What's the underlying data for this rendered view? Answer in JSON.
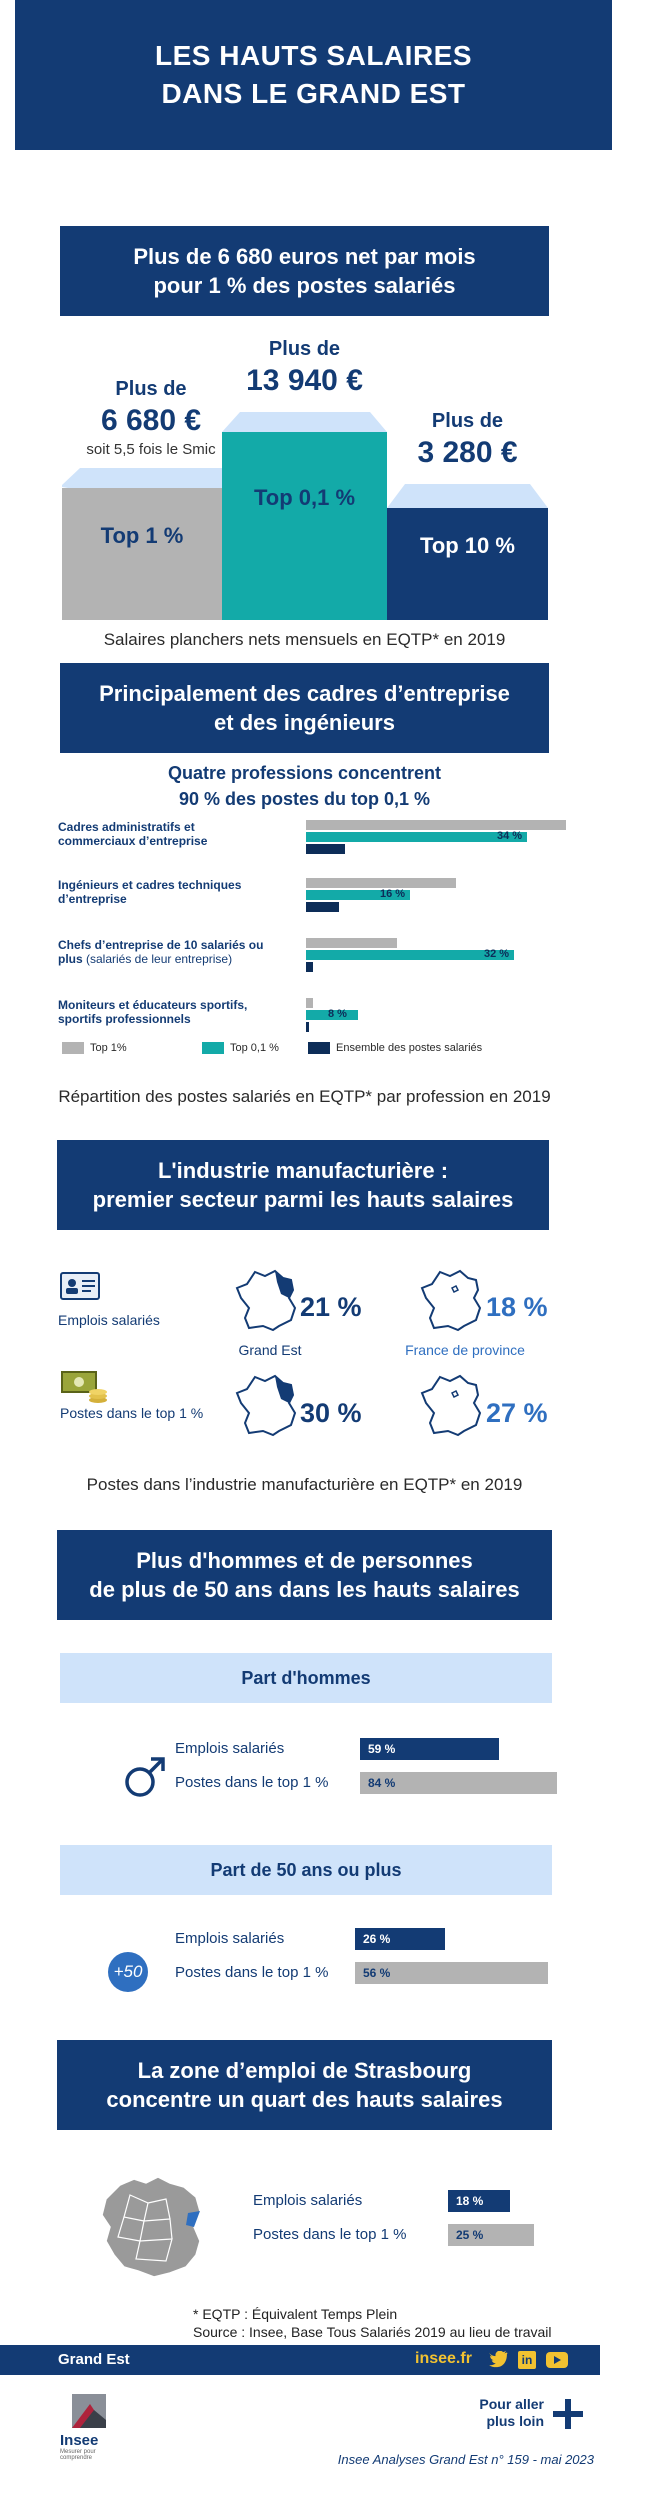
{
  "header": {
    "title_line1": "LES HAUTS SALAIRES",
    "title_line2": "DANS LE GRAND EST"
  },
  "section1": {
    "title_line1": "Plus de 6 680 euros net par mois",
    "title_line2": "pour 1 % des postes salariés",
    "columns": [
      {
        "prefix": "Plus de",
        "amount": "6 680 €",
        "note": "soit 5,5 fois le Smic",
        "label": "Top 1 %",
        "color": "#b3b3b3"
      },
      {
        "prefix": "Plus de",
        "amount": "13 940 €",
        "note": "",
        "label": "Top 0,1 %",
        "color": "#13aaa8"
      },
      {
        "prefix": "Plus de",
        "amount": "3 280 €",
        "note": "",
        "label": "Top 10 %",
        "color": "#133b74"
      }
    ],
    "caption": "Salaires planchers nets mensuels en EQTP* en 2019"
  },
  "section2": {
    "title_line1": "Principalement des cadres d’entreprise",
    "title_line2": "et des ingénieurs",
    "subtitle_line1": "Quatre professions concentrent",
    "subtitle_line2": "90 % des postes du top 0,1 %",
    "caption": "Répartition des postes salariés en EQTP* par profession en 2019"
  },
  "chart_data": {
    "type": "bar",
    "categories": [
      "Cadres administratifs et commerciaux d’entreprise",
      "Ingénieurs et cadres techniques d’entreprise",
      "Chefs d’entreprise de 10 salariés ou plus (salariés de leur entreprise)",
      "Moniteurs et éducateurs sportifs, sportifs professionnels"
    ],
    "category_lines": [
      {
        "line1": "Cadres administratifs et",
        "line2": "commerciaux d’entreprise",
        "note": ""
      },
      {
        "line1": "Ingénieurs et cadres techniques",
        "line2": "d’entreprise",
        "note": ""
      },
      {
        "line1": "Chefs d’entreprise de 10 salariés ou",
        "line2": "plus",
        "note": " (salariés de leur entreprise)"
      },
      {
        "line1": "Moniteurs et éducateurs sportifs,",
        "line2": "sportifs professionnels",
        "note": ""
      }
    ],
    "series": [
      {
        "name": "Top 1%",
        "color": "#b3b3b3",
        "values": [
          40,
          23,
          14,
          1
        ]
      },
      {
        "name": "Top 0,1 %",
        "color": "#13aaa8",
        "values": [
          34,
          16,
          32,
          8
        ],
        "labels": [
          "34 %",
          "16 %",
          "32 %",
          "8 %"
        ]
      },
      {
        "name": "Ensemble des postes salariés",
        "color": "#0d2d58",
        "values": [
          6,
          5,
          1,
          0.5
        ]
      }
    ],
    "xlim": [
      0,
      45
    ],
    "legend": "bottom"
  },
  "section3": {
    "title_line1": "L'industrie manufacturière :",
    "title_line2": "premier secteur parmi les hauts salaires",
    "row1_label": "Emplois salariés",
    "row2_label": "Postes dans le top 1 %",
    "grand_est_label": "Grand Est",
    "province_label": "France de province",
    "values": {
      "emplois_grand_est": "21 %",
      "emplois_province": "18 %",
      "top_grand_est": "30 %",
      "top_province": "27 %"
    },
    "caption": "Postes dans l’industrie manufacturière en EQTP* en 2019"
  },
  "section4": {
    "title_line1": "Plus d'hommes et de personnes",
    "title_line2": "de plus de 50 ans dans les hauts salaires",
    "men": {
      "title": "Part d'hommes",
      "rows": [
        {
          "label": "Emplois salariés",
          "value": 59,
          "text": "59 %",
          "color": "#133b74"
        },
        {
          "label": "Postes dans le top 1 %",
          "value": 84,
          "text": "84 %",
          "color": "#b3b3b3"
        }
      ]
    },
    "age": {
      "title": "Part de 50 ans ou plus",
      "icon_text": "+50",
      "rows": [
        {
          "label": "Emplois salariés",
          "value": 26,
          "text": "26 %",
          "color": "#133b74"
        },
        {
          "label": "Postes dans le top 1 %",
          "value": 56,
          "text": "56 %",
          "color": "#b3b3b3"
        }
      ]
    }
  },
  "section5": {
    "title_line1": "La zone d’emploi de Strasbourg",
    "title_line2": "concentre un quart des hauts salaires",
    "rows": [
      {
        "label": "Emplois salariés",
        "value": 18,
        "text": "18 %",
        "color": "#133b74"
      },
      {
        "label": "Postes dans le top 1 %",
        "value": 25,
        "text": "25 %",
        "color": "#b3b3b3"
      }
    ]
  },
  "footnote": {
    "line1": "* EQTP : Équivalent Temps Plein",
    "line2": "Source : Insee, Base Tous Salariés 2019 au lieu de travail"
  },
  "footer": {
    "region": "Grand Est",
    "site": "insee.fr",
    "logo_text": "Insee",
    "logo_sub": "Mesurer pour comprendre",
    "more_line1": "Pour aller",
    "more_line2": "plus loin",
    "publication": "Insee Analyses Grand Est n° 159 - mai 2023"
  }
}
